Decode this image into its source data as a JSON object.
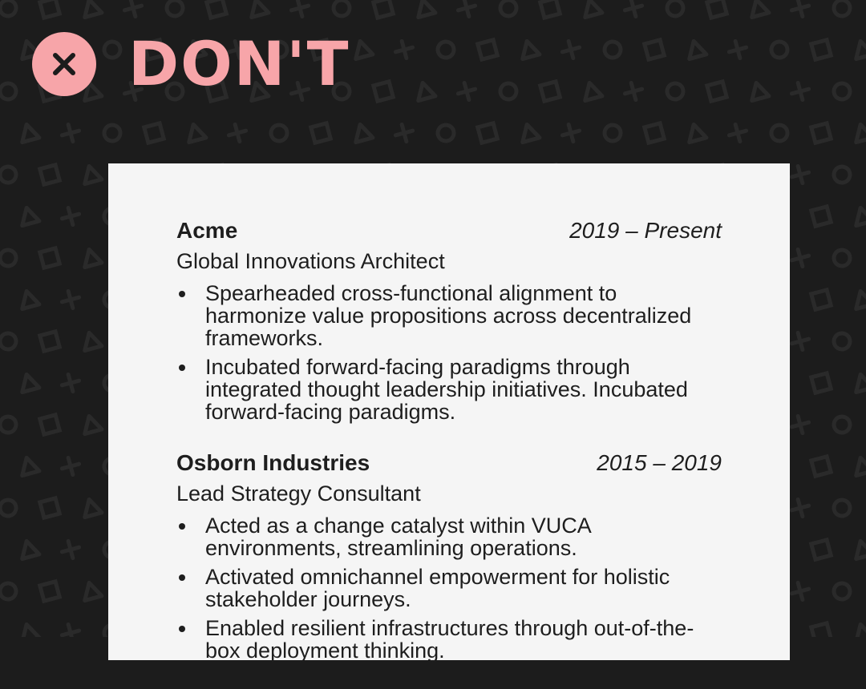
{
  "colors": {
    "background": "#1c1c1c",
    "pattern": "#2a2a2a",
    "accent": "#f7a5a9",
    "icon": "#1c1c1c",
    "card": "#f5f5f5",
    "text": "#1e1e1e"
  },
  "header": {
    "icon": "close-x-icon",
    "title": "DON'T"
  },
  "resume": {
    "jobs": [
      {
        "company": "Acme",
        "dates": "2019 – Present",
        "role": "Global Innovations Architect",
        "bullets": [
          "Spearheaded cross-functional alignment to harmonize value propositions across decentralized frameworks.",
          "Incubated forward-facing paradigms through integrated thought leadership initiatives. Incubated forward-facing paradigms."
        ]
      },
      {
        "company": "Osborn Industries",
        "dates": "2015 – 2019",
        "role": "Lead Strategy Consultant",
        "bullets": [
          "Acted as a change catalyst within VUCA environments, streamlining operations.",
          "Activated omnichannel empowerment for holistic stakeholder journeys.",
          "Enabled resilient infrastructures through out-of-the-box deployment thinking."
        ]
      }
    ]
  }
}
